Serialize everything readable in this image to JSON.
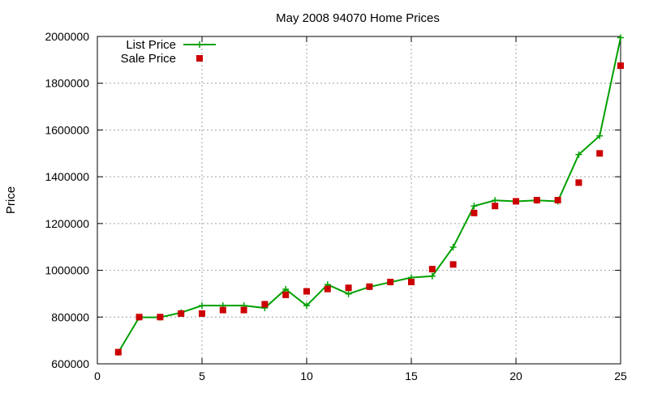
{
  "chart_data": {
    "type": "line",
    "title": "May 2008 94070 Home Prices",
    "xlabel": "",
    "ylabel": "Price",
    "xlim": [
      0,
      25
    ],
    "ylim": [
      600000,
      2000000
    ],
    "x_ticks": [
      0,
      5,
      10,
      15,
      20,
      25
    ],
    "y_ticks": [
      600000,
      800000,
      1000000,
      1200000,
      1400000,
      1600000,
      1800000,
      2000000
    ],
    "grid": true,
    "legend_position": "top-left",
    "x": [
      1,
      2,
      3,
      4,
      5,
      6,
      7,
      8,
      9,
      10,
      11,
      12,
      13,
      14,
      15,
      16,
      17,
      18,
      19,
      20,
      21,
      22,
      23,
      24,
      25
    ],
    "series": [
      {
        "name": "List Price",
        "style": "line-with-plus-markers",
        "color": "#00a000",
        "values": [
          649000,
          799000,
          799000,
          819000,
          849000,
          849000,
          849000,
          839000,
          919000,
          849000,
          939000,
          899000,
          929000,
          949000,
          969000,
          975000,
          1099000,
          1275000,
          1299000,
          1295000,
          1299000,
          1295000,
          1495000,
          1575000,
          1995000
        ]
      },
      {
        "name": "Sale Price",
        "style": "square-markers",
        "color": "#cc0000",
        "values": [
          650000,
          800000,
          800000,
          815000,
          815000,
          830000,
          830000,
          855000,
          895000,
          910000,
          920000,
          925000,
          930000,
          950000,
          950000,
          1005000,
          1025000,
          1245000,
          1275000,
          1295000,
          1300000,
          1300000,
          1375000,
          1500000,
          1875000
        ]
      }
    ]
  }
}
